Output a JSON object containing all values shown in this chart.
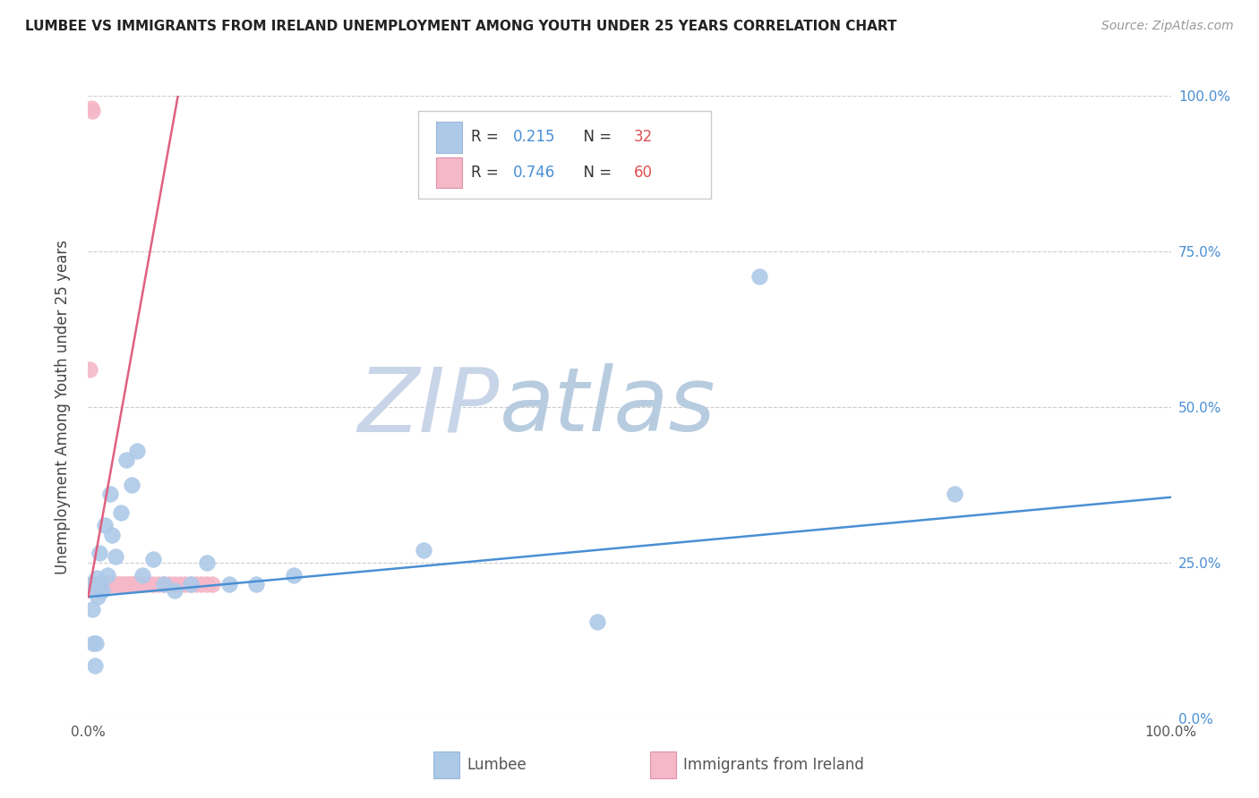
{
  "title": "LUMBEE VS IMMIGRANTS FROM IRELAND UNEMPLOYMENT AMONG YOUTH UNDER 25 YEARS CORRELATION CHART",
  "source": "Source: ZipAtlas.com",
  "ylabel": "Unemployment Among Youth under 25 years",
  "xlabel_lumbee": "Lumbee",
  "xlabel_ireland": "Immigrants from Ireland",
  "xlim": [
    0.0,
    1.0
  ],
  "ylim": [
    0.0,
    1.0
  ],
  "xtick_values": [
    0.0,
    0.2,
    0.4,
    0.6,
    0.8,
    1.0
  ],
  "xtick_labels": [
    "0.0%",
    "",
    "",
    "",
    "",
    "100.0%"
  ],
  "ytick_values": [
    0.0,
    0.25,
    0.5,
    0.75,
    1.0
  ],
  "ytick_labels_left": [
    "",
    "",
    "",
    "",
    ""
  ],
  "ytick_labels_right": [
    "0.0%",
    "25.0%",
    "50.0%",
    "75.0%",
    "100.0%"
  ],
  "lumbee_R": 0.215,
  "lumbee_N": 32,
  "ireland_R": 0.746,
  "ireland_N": 60,
  "lumbee_color": "#adc9e8",
  "ireland_color": "#f5b8c8",
  "lumbee_line_color": "#4a8fd4",
  "ireland_line_color": "#e06080",
  "watermark_zip_color": "#c8d8ee",
  "watermark_atlas_color": "#c8d8ee",
  "lumbee_scatter_x": [
    0.003,
    0.004,
    0.005,
    0.006,
    0.007,
    0.008,
    0.009,
    0.01,
    0.011,
    0.013,
    0.015,
    0.018,
    0.02,
    0.022,
    0.025,
    0.03,
    0.035,
    0.04,
    0.045,
    0.05,
    0.06,
    0.07,
    0.08,
    0.095,
    0.11,
    0.13,
    0.155,
    0.19,
    0.31,
    0.47,
    0.62,
    0.8
  ],
  "lumbee_scatter_y": [
    0.215,
    0.175,
    0.12,
    0.085,
    0.12,
    0.225,
    0.195,
    0.265,
    0.215,
    0.205,
    0.31,
    0.23,
    0.36,
    0.295,
    0.26,
    0.33,
    0.415,
    0.375,
    0.43,
    0.23,
    0.255,
    0.215,
    0.205,
    0.215,
    0.25,
    0.215,
    0.215,
    0.23,
    0.27,
    0.155,
    0.71,
    0.36
  ],
  "ireland_scatter_x": [
    0.001,
    0.002,
    0.003,
    0.004,
    0.004,
    0.005,
    0.005,
    0.006,
    0.006,
    0.007,
    0.007,
    0.008,
    0.008,
    0.009,
    0.009,
    0.01,
    0.01,
    0.011,
    0.012,
    0.012,
    0.013,
    0.013,
    0.014,
    0.014,
    0.015,
    0.015,
    0.016,
    0.017,
    0.018,
    0.019,
    0.02,
    0.021,
    0.022,
    0.024,
    0.026,
    0.028,
    0.03,
    0.032,
    0.035,
    0.038,
    0.04,
    0.042,
    0.045,
    0.048,
    0.05,
    0.055,
    0.06,
    0.065,
    0.07,
    0.075,
    0.08,
    0.085,
    0.09,
    0.095,
    0.1,
    0.105,
    0.11,
    0.115,
    0.003,
    0.004
  ],
  "ireland_scatter_y": [
    0.56,
    0.215,
    0.215,
    0.215,
    0.215,
    0.215,
    0.205,
    0.215,
    0.215,
    0.215,
    0.215,
    0.215,
    0.215,
    0.215,
    0.215,
    0.215,
    0.215,
    0.215,
    0.215,
    0.215,
    0.215,
    0.215,
    0.215,
    0.215,
    0.215,
    0.215,
    0.215,
    0.215,
    0.215,
    0.215,
    0.215,
    0.215,
    0.215,
    0.215,
    0.215,
    0.215,
    0.215,
    0.215,
    0.215,
    0.215,
    0.215,
    0.215,
    0.215,
    0.215,
    0.215,
    0.215,
    0.215,
    0.215,
    0.215,
    0.215,
    0.215,
    0.215,
    0.215,
    0.215,
    0.215,
    0.215,
    0.215,
    0.215,
    0.98,
    0.975
  ],
  "lumbee_trendline": [
    [
      0.0,
      1.0
    ],
    [
      0.195,
      0.355
    ]
  ],
  "ireland_trendline": [
    [
      0.0,
      0.085
    ],
    [
      0.195,
      1.02
    ]
  ]
}
